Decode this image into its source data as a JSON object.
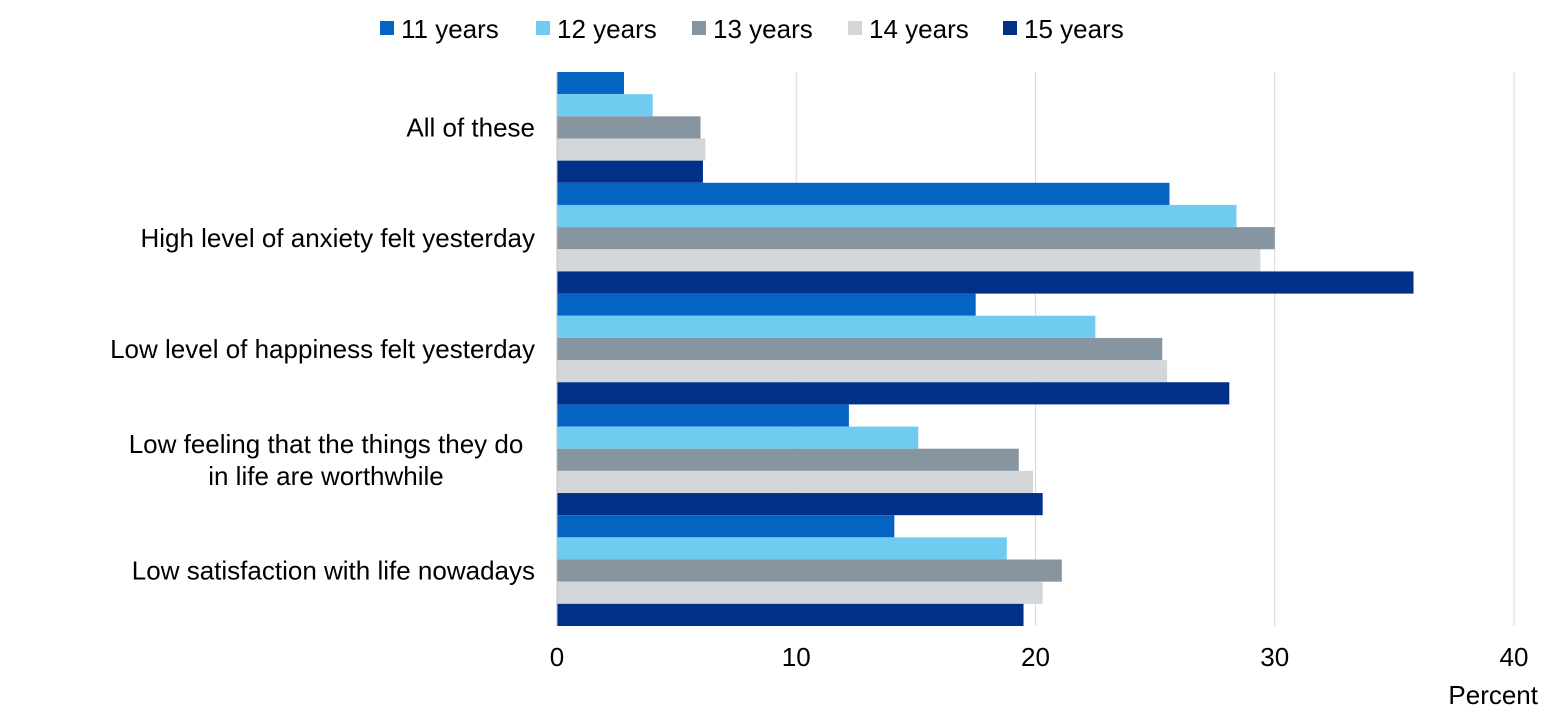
{
  "chart_data": {
    "type": "bar",
    "orientation": "horizontal",
    "categories": [
      [
        "All of these"
      ],
      [
        "High level of anxiety felt yesterday"
      ],
      [
        "Low level of happiness felt yesterday"
      ],
      [
        "Low feeling that the things they do",
        "in life are worthwhile"
      ],
      [
        "Low satisfaction with life nowadays"
      ]
    ],
    "series": [
      {
        "name": "11 years",
        "color": "#0563c1",
        "values": [
          2.8,
          25.6,
          17.5,
          12.2,
          14.1
        ]
      },
      {
        "name": "12 years",
        "color": "#6fcbef",
        "values": [
          4.0,
          28.4,
          22.5,
          15.1,
          18.8
        ]
      },
      {
        "name": "13 years",
        "color": "#8795a1",
        "values": [
          6.0,
          30.0,
          25.3,
          19.3,
          21.1
        ]
      },
      {
        "name": "14 years",
        "color": "#d3d7da",
        "values": [
          6.2,
          29.4,
          25.5,
          19.9,
          20.3
        ]
      },
      {
        "name": "15 years",
        "color": "#003087",
        "values": [
          6.1,
          35.8,
          28.1,
          20.3,
          19.5
        ]
      }
    ],
    "xlim": [
      0,
      40
    ],
    "xticks": [
      "0",
      "10",
      "20",
      "30",
      "40"
    ],
    "xlabel": "Percent",
    "grid": true,
    "legend": "top"
  }
}
